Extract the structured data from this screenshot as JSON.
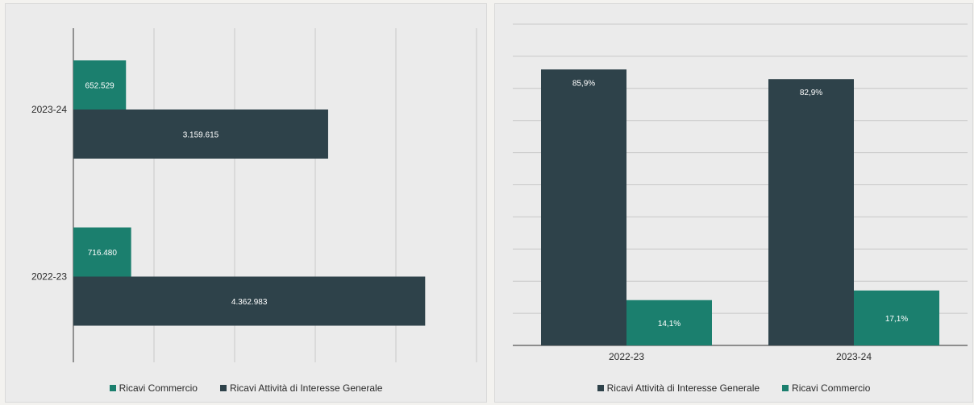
{
  "colors": {
    "commercio": "#1b7f6e",
    "interesse": "#2e424a"
  },
  "chart_data": [
    {
      "type": "bar",
      "orientation": "horizontal",
      "categories": [
        "2023-24",
        "2022-23"
      ],
      "series": [
        {
          "name": "Ricavi Commercio",
          "values": [
            652529,
            716480
          ],
          "labels": [
            "652.529",
            "716.480"
          ]
        },
        {
          "name": "Ricavi Attività di Interesse Generale",
          "values": [
            3159615,
            4362983
          ],
          "labels": [
            "3.159.615",
            "4.362.983"
          ]
        }
      ],
      "xlim": [
        0,
        5000000
      ],
      "grid": true,
      "legend": [
        "Ricavi Commercio",
        "Ricavi Attività di Interesse Generale"
      ],
      "legend_position": "bottom"
    },
    {
      "type": "bar",
      "orientation": "vertical",
      "categories": [
        "2022-23",
        "2023-24"
      ],
      "series": [
        {
          "name": "Ricavi Attività di Interesse Generale",
          "values": [
            85.9,
            82.9
          ],
          "labels": [
            "85,9%",
            "82,9%"
          ]
        },
        {
          "name": "Ricavi Commercio",
          "values": [
            14.1,
            17.1
          ],
          "labels": [
            "14,1%",
            "17,1%"
          ]
        }
      ],
      "ylim": [
        0,
        100
      ],
      "grid": true,
      "legend": [
        "Ricavi Attività di Interesse Generale",
        "Ricavi Commercio"
      ],
      "legend_position": "bottom"
    }
  ]
}
